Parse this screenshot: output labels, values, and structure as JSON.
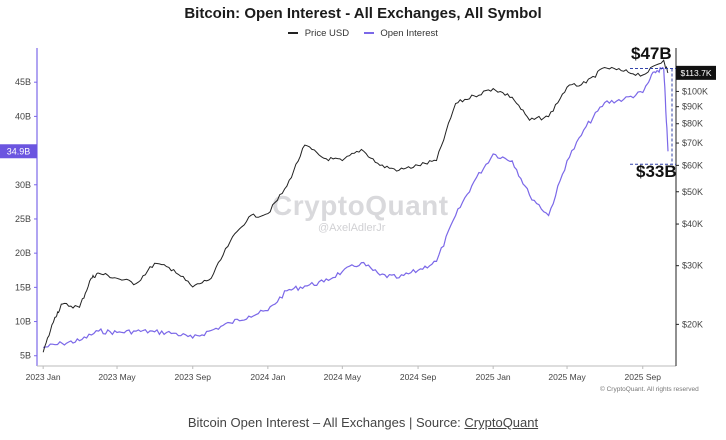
{
  "chart_data": {
    "type": "line",
    "title": "Bitcoin: Open Interest - All Exchanges, All Symbol",
    "legend": [
      "Price USD",
      "Open Interest"
    ],
    "legend_position": "top-center",
    "left_axis": {
      "unit": "B",
      "ticks": [
        "5B",
        "10B",
        "15B",
        "20B",
        "25B",
        "30B",
        "35B",
        "40B",
        "45B"
      ],
      "range": [
        3.5,
        50
      ]
    },
    "right_axis": {
      "scale": "log",
      "ticks": [
        "$20K",
        "$30K",
        "$40K",
        "$50K",
        "$60K",
        "$70K",
        "$80K",
        "$90K",
        "$100K"
      ],
      "range": [
        15000,
        135000
      ]
    },
    "x_ticks": [
      "2023 Jan",
      "2023 May",
      "2023 Sep",
      "2024 Jan",
      "2024 May",
      "2024 Sep",
      "2025 Jan",
      "2025 May",
      "2025 Sep"
    ],
    "current_oi_label": "34.9B",
    "current_price_label": "$113.7K",
    "annotations": {
      "high": "$47B",
      "low": "$33B"
    },
    "series": [
      {
        "name": "Open Interest",
        "color": "#7b68e8",
        "axis": "left",
        "points": [
          [
            "2023-01-01",
            6.2
          ],
          [
            "2023-02-01",
            6.8
          ],
          [
            "2023-03-01",
            7.2
          ],
          [
            "2023-04-01",
            8.6
          ],
          [
            "2023-05-01",
            8.4
          ],
          [
            "2023-06-01",
            8.6
          ],
          [
            "2023-07-01",
            8.5
          ],
          [
            "2023-08-01",
            8.3
          ],
          [
            "2023-09-01",
            7.6
          ],
          [
            "2023-10-01",
            8.7
          ],
          [
            "2023-11-01",
            9.8
          ],
          [
            "2023-12-01",
            10.8
          ],
          [
            "2024-01-01",
            11.6
          ],
          [
            "2024-02-01",
            14.5
          ],
          [
            "2024-03-01",
            15.2
          ],
          [
            "2024-04-01",
            15.8
          ],
          [
            "2024-05-01",
            17.3
          ],
          [
            "2024-06-01",
            18.6
          ],
          [
            "2024-07-01",
            16.8
          ],
          [
            "2024-08-01",
            16.4
          ],
          [
            "2024-09-01",
            17.5
          ],
          [
            "2024-10-01",
            18.8
          ],
          [
            "2024-11-01",
            25.5
          ],
          [
            "2024-12-01",
            30.5
          ],
          [
            "2025-01-01",
            34.5
          ],
          [
            "2025-02-01",
            33.5
          ],
          [
            "2025-03-01",
            28.5
          ],
          [
            "2025-04-01",
            25.5
          ],
          [
            "2025-05-01",
            33.5
          ],
          [
            "2025-06-01",
            38.5
          ],
          [
            "2025-07-01",
            42.0
          ],
          [
            "2025-08-01",
            42.5
          ],
          [
            "2025-09-01",
            43.5
          ],
          [
            "2025-09-20",
            46.5
          ],
          [
            "2025-10-05",
            47.0
          ],
          [
            "2025-10-12",
            34.9
          ]
        ]
      },
      {
        "name": "Price USD",
        "color": "#222222",
        "axis": "right",
        "points": [
          [
            "2023-01-01",
            16500
          ],
          [
            "2023-01-20",
            21000
          ],
          [
            "2023-02-01",
            23000
          ],
          [
            "2023-03-01",
            22500
          ],
          [
            "2023-03-20",
            27500
          ],
          [
            "2023-04-01",
            28500
          ],
          [
            "2023-05-01",
            27500
          ],
          [
            "2023-06-01",
            26500
          ],
          [
            "2023-07-01",
            30500
          ],
          [
            "2023-08-01",
            29200
          ],
          [
            "2023-09-01",
            25900
          ],
          [
            "2023-10-01",
            27500
          ],
          [
            "2023-11-01",
            35500
          ],
          [
            "2023-12-01",
            42000
          ],
          [
            "2024-01-01",
            43000
          ],
          [
            "2024-02-01",
            52000
          ],
          [
            "2024-03-01",
            69000
          ],
          [
            "2024-04-01",
            63000
          ],
          [
            "2024-05-01",
            62000
          ],
          [
            "2024-06-01",
            67000
          ],
          [
            "2024-07-01",
            60000
          ],
          [
            "2024-08-01",
            58000
          ],
          [
            "2024-09-01",
            60000
          ],
          [
            "2024-10-01",
            62000
          ],
          [
            "2024-11-01",
            92000
          ],
          [
            "2024-12-01",
            97000
          ],
          [
            "2025-01-01",
            102000
          ],
          [
            "2025-02-01",
            96000
          ],
          [
            "2025-03-01",
            82000
          ],
          [
            "2025-04-01",
            84000
          ],
          [
            "2025-05-01",
            103000
          ],
          [
            "2025-06-01",
            106000
          ],
          [
            "2025-07-01",
            118000
          ],
          [
            "2025-08-01",
            115000
          ],
          [
            "2025-09-01",
            112000
          ],
          [
            "2025-10-05",
            124000
          ],
          [
            "2025-10-12",
            113700
          ]
        ]
      }
    ]
  },
  "source_prefix": "Bitcoin Open Interest – All Exchanges | Source: ",
  "source_link": "CryptoQuant",
  "watermark": {
    "logo": "CryptoQuant",
    "handle": "@AxelAdlerJr"
  },
  "copyright": "© CryptoQuant. All rights reserved"
}
